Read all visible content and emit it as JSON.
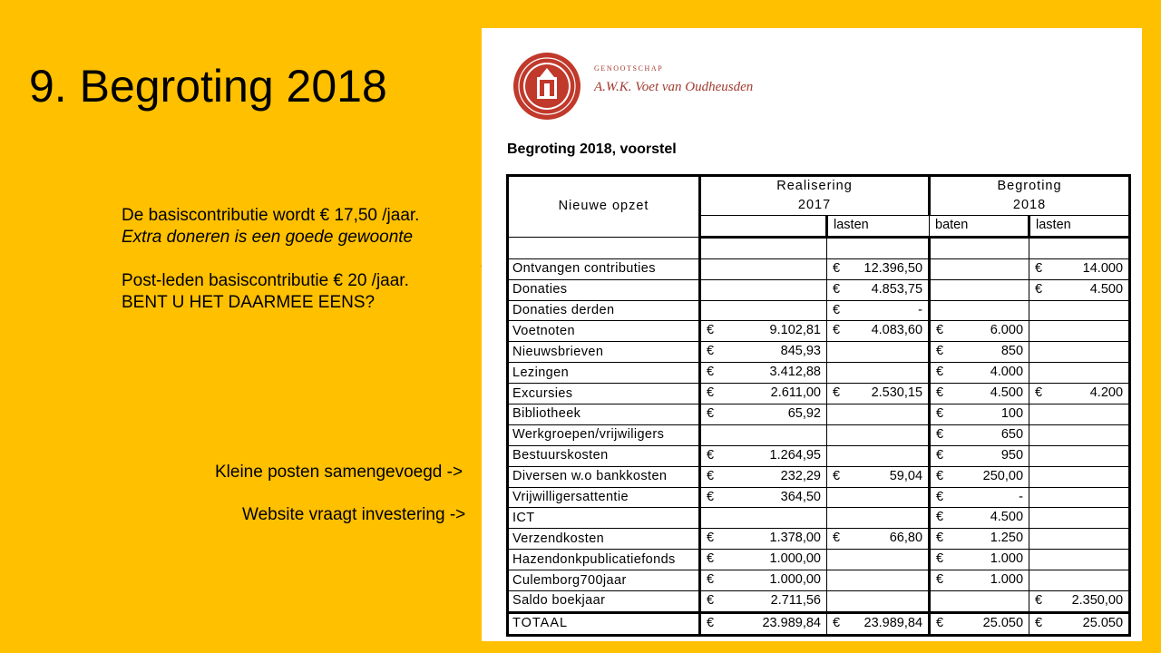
{
  "slide": {
    "title": "9. Begroting 2018",
    "notes": {
      "line1": "De basiscontributie wordt € 17,50 /jaar.",
      "line2": "Extra doneren is een goede gewoonte",
      "line3": "Post-leden basiscontributie € 20 /jaar.",
      "line4": "BENT U HET DAARMEE EENS?"
    },
    "arrow_contrib": "->",
    "arrow_kleine": "Kleine posten samengevoegd ->",
    "arrow_website": "Website vraagt investering ->"
  },
  "document": {
    "society_small": "GENOOTSCHAP",
    "society_name": "A.W.K. Voet van Oudheusden",
    "title": "Begroting 2018, voorstel",
    "header": {
      "col1": "Nieuwe opzet",
      "group1_line1": "Realisering",
      "group1_line2": "2017",
      "group2_line1": "Begroting",
      "group2_line2": "2018",
      "sub": [
        "lasten",
        "baten",
        "lasten",
        "baten"
      ]
    },
    "currency": "€",
    "rows": [
      {
        "label": "",
        "v": [
          "",
          "",
          "",
          ""
        ]
      },
      {
        "label": "Ontvangen contributies",
        "v": [
          "",
          "12.396,50",
          "",
          "14.000"
        ]
      },
      {
        "label": "Donaties",
        "v": [
          "",
          "4.853,75",
          "",
          "4.500"
        ]
      },
      {
        "label": "Donaties derden",
        "v": [
          "",
          "-",
          "",
          ""
        ]
      },
      {
        "label": "Voetnoten",
        "v": [
          "9.102,81",
          "4.083,60",
          "6.000",
          ""
        ]
      },
      {
        "label": "Nieuwsbrieven",
        "v": [
          "845,93",
          "",
          "850",
          ""
        ]
      },
      {
        "label": "Lezingen",
        "v": [
          "3.412,88",
          "",
          "4.000",
          ""
        ]
      },
      {
        "label": "Excursies",
        "v": [
          "2.611,00",
          "2.530,15",
          "4.500",
          "4.200"
        ]
      },
      {
        "label": "Bibliotheek",
        "v": [
          "65,92",
          "",
          "100",
          ""
        ]
      },
      {
        "label": "Werkgroepen/vrijwiligers",
        "v": [
          "",
          "",
          "650",
          ""
        ]
      },
      {
        "label": "Bestuurskosten",
        "v": [
          "1.264,95",
          "",
          "950",
          ""
        ]
      },
      {
        "label": "Diversen w.o bankkosten",
        "v": [
          "232,29",
          "59,04",
          "250,00",
          ""
        ]
      },
      {
        "label": "Vrijwilligersattentie",
        "v": [
          "364,50",
          "",
          "-",
          ""
        ]
      },
      {
        "label": "ICT",
        "v": [
          "",
          "",
          "4.500",
          ""
        ]
      },
      {
        "label": "Verzendkosten",
        "v": [
          "1.378,00",
          "66,80",
          "1.250",
          ""
        ]
      },
      {
        "label": "Hazendonkpublicatiefonds",
        "v": [
          "1.000,00",
          "",
          "1.000",
          ""
        ]
      },
      {
        "label": "Culemborg700jaar",
        "v": [
          "1.000,00",
          "",
          "1.000",
          ""
        ]
      },
      {
        "label": "Saldo boekjaar",
        "v": [
          "2.711,56",
          "",
          "",
          "2.350,00"
        ]
      }
    ],
    "total": {
      "label": "TOTAAL",
      "v": [
        "23.989,84",
        "23.989,84",
        "25.050",
        "25.050"
      ]
    }
  },
  "colors": {
    "background": "#FFC000",
    "seal": "#c0392b",
    "society_text": "#a23a30"
  },
  "icons": {
    "seal": "society-seal-logo"
  }
}
